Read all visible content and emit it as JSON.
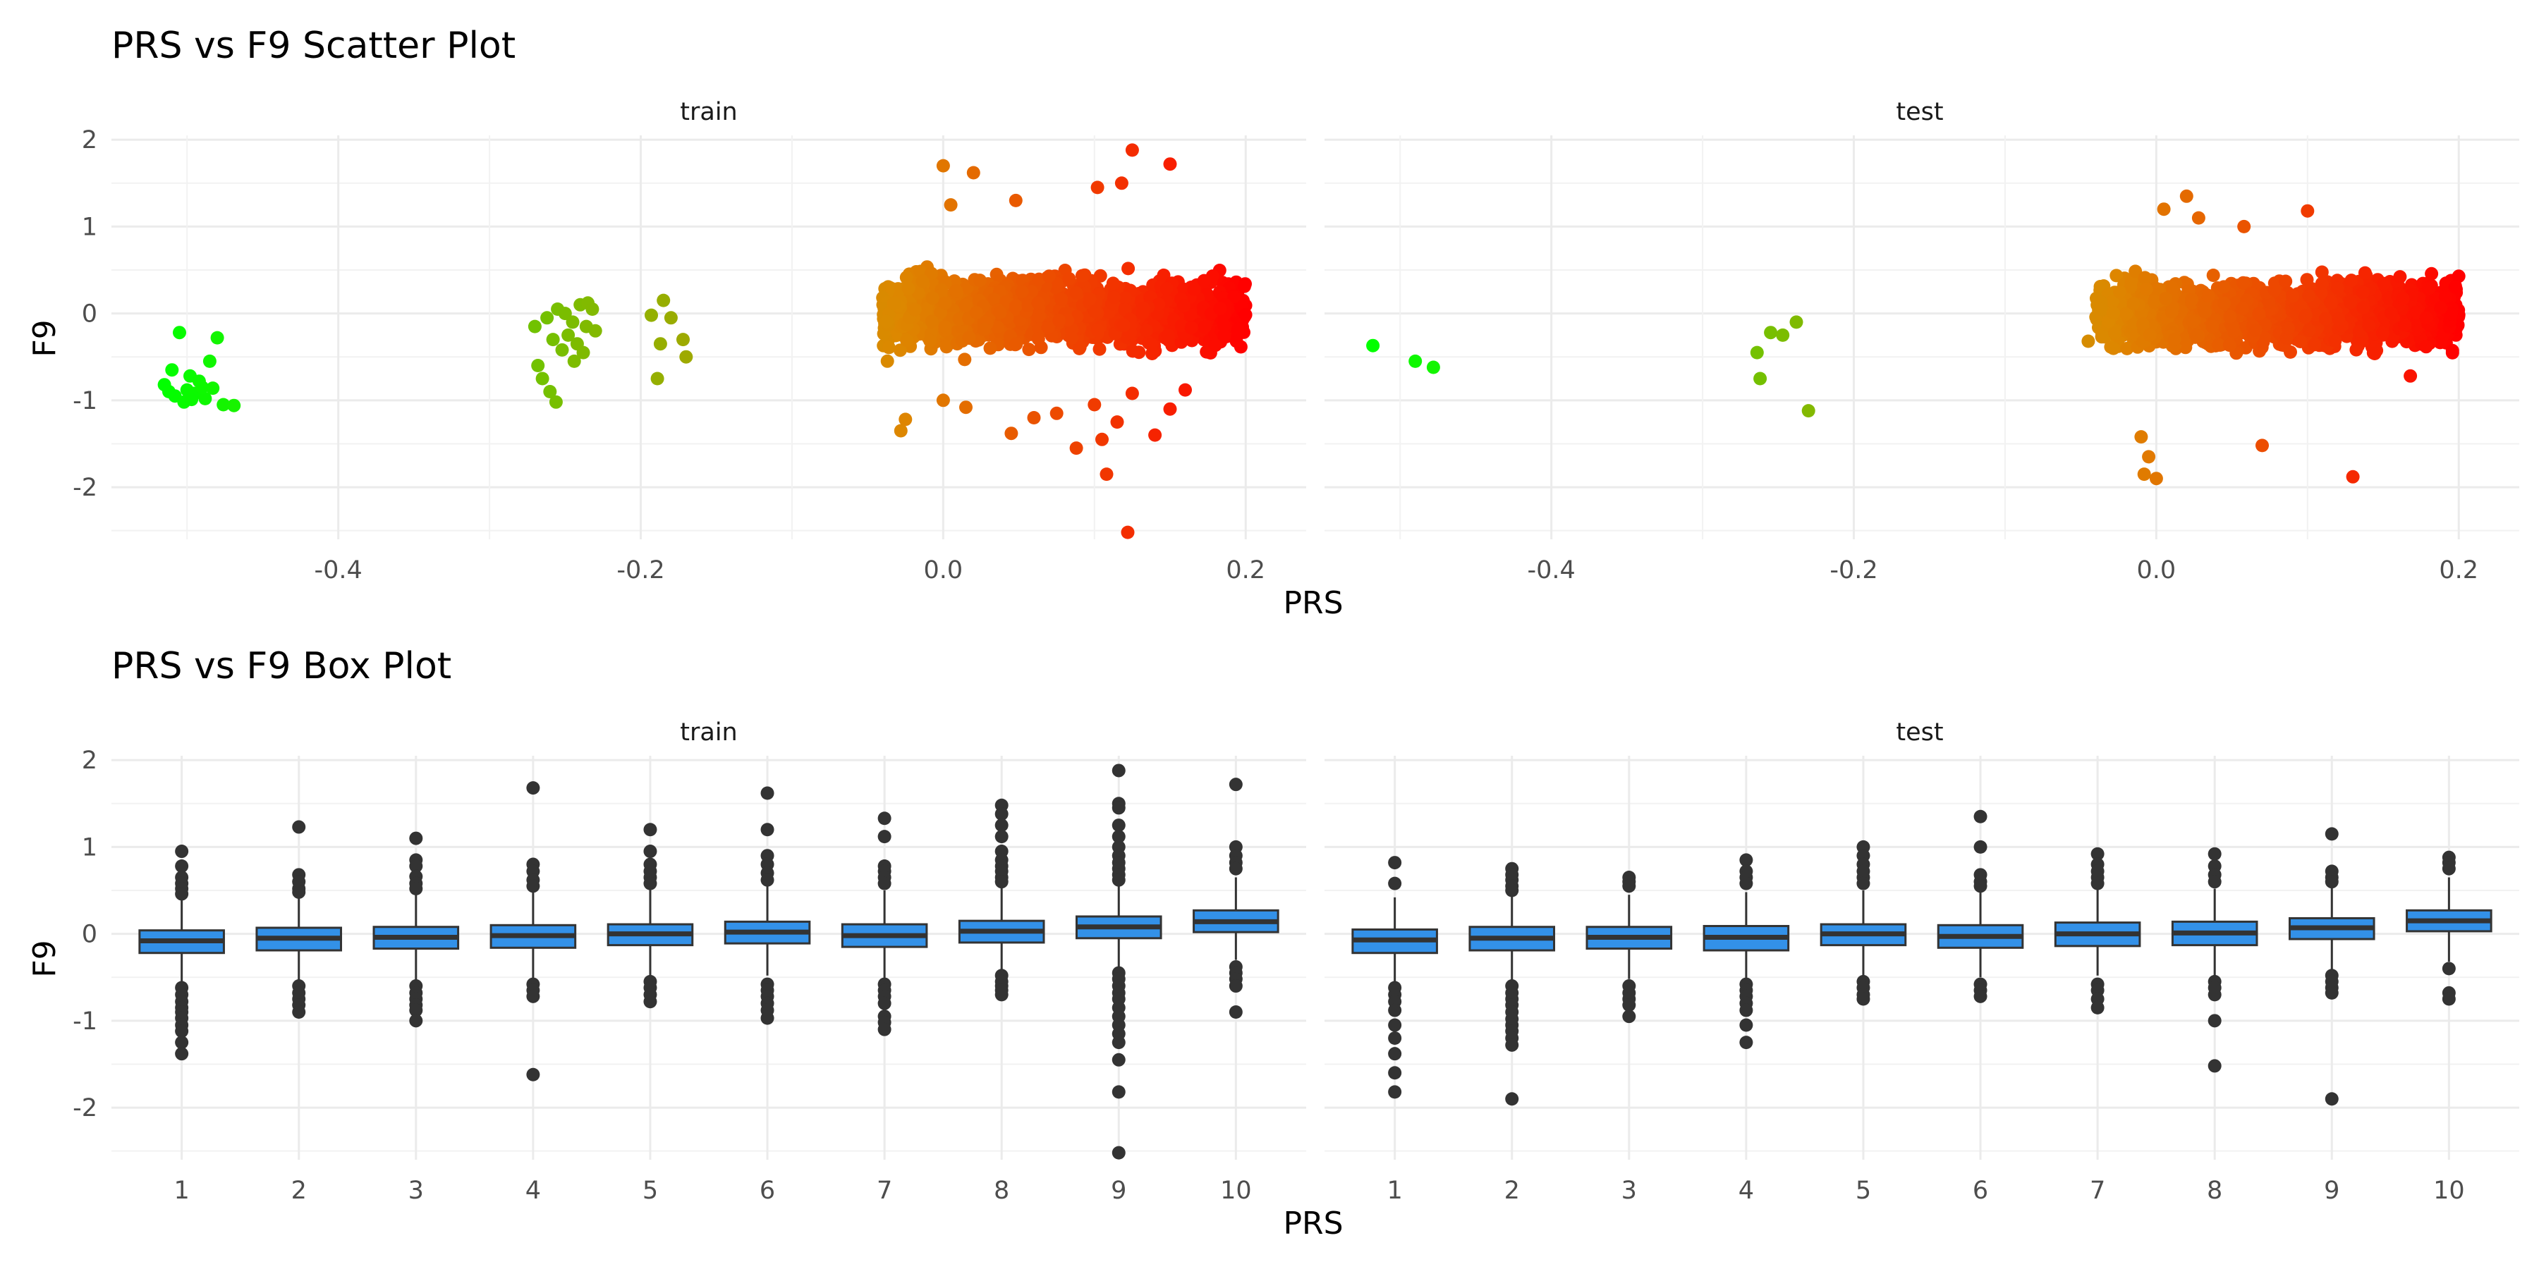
{
  "figure": {
    "scatter": {
      "title": "PRS vs F9 Scatter Plot",
      "xlabel": "PRS",
      "ylabel": "F9",
      "panels": [
        "train",
        "test"
      ]
    },
    "box": {
      "title": "PRS vs F9 Box Plot",
      "xlabel": "PRS",
      "ylabel": "F9",
      "panels": [
        "train",
        "test"
      ]
    }
  },
  "chart_data": [
    {
      "type": "scatter",
      "title": "PRS vs F9 Scatter Plot",
      "xlabel": "PRS",
      "ylabel": "F9",
      "facets": [
        "train",
        "test"
      ],
      "x_ticks": [
        -0.4,
        -0.2,
        0.0,
        0.2
      ],
      "x_tick_labels": [
        "-0.4",
        "-0.2",
        "0.0",
        "0.2"
      ],
      "y_ticks": [
        -2,
        -1,
        0,
        1,
        2
      ],
      "y_tick_labels": [
        "-2",
        "-1",
        "0",
        "1",
        "2"
      ],
      "xlim": [
        -0.55,
        0.24
      ],
      "ylim": [
        -2.6,
        2.05
      ],
      "grid": true,
      "legend": "none",
      "color_scale": {
        "low": "#00ff00",
        "mid": "#dd8800",
        "high": "#ff0000",
        "mapped_to": "PRS"
      },
      "series": [
        {
          "name": "train",
          "main_cluster": {
            "x_range": [
              -0.04,
              0.2
            ],
            "y_center": 0.0,
            "y_spread": 0.55
          },
          "x": [
            -0.505,
            -0.51,
            -0.498,
            -0.492,
            -0.485,
            -0.515,
            -0.5,
            -0.495,
            -0.488,
            -0.48,
            -0.508,
            -0.502,
            -0.49,
            -0.476,
            -0.469,
            -0.512,
            -0.497,
            -0.483,
            -0.27,
            -0.262,
            -0.255,
            -0.25,
            -0.245,
            -0.24,
            -0.235,
            -0.23,
            -0.258,
            -0.248,
            -0.242,
            -0.252,
            -0.238,
            -0.268,
            -0.244,
            -0.26,
            -0.236,
            -0.232,
            -0.265,
            -0.256,
            -0.193,
            -0.185,
            -0.18,
            -0.187,
            -0.172,
            -0.17,
            -0.189,
            0.0,
            0.005,
            0.02,
            0.048,
            0.102,
            0.118,
            0.15,
            0.125,
            0.045,
            0.06,
            0.088,
            0.105,
            0.14,
            0.108,
            0.115,
            0.122,
            -0.028,
            -0.025,
            0.0,
            0.015,
            0.075,
            0.1,
            0.125,
            0.15,
            0.16
          ],
          "y": [
            -0.22,
            -0.65,
            -0.72,
            -0.78,
            -0.55,
            -0.82,
            -0.88,
            -0.92,
            -0.98,
            -0.28,
            -0.95,
            -1.02,
            -0.85,
            -1.05,
            -1.06,
            -0.9,
            -0.99,
            -0.86,
            -0.15,
            -0.05,
            0.05,
            0.0,
            -0.1,
            0.1,
            0.12,
            -0.2,
            -0.3,
            -0.25,
            -0.35,
            -0.42,
            -0.45,
            -0.6,
            -0.55,
            -0.9,
            -0.15,
            0.05,
            -0.75,
            -1.02,
            -0.02,
            0.15,
            -0.05,
            -0.35,
            -0.3,
            -0.5,
            -0.75,
            1.7,
            1.25,
            1.62,
            1.3,
            1.45,
            1.5,
            1.72,
            1.88,
            -1.38,
            -1.2,
            -1.55,
            -1.45,
            -1.4,
            -1.85,
            -1.25,
            -2.52,
            -1.35,
            -1.22,
            -1.0,
            -1.08,
            -1.15,
            -1.05,
            -0.92,
            -1.1,
            -0.88
          ]
        },
        {
          "name": "test",
          "main_cluster": {
            "x_range": [
              -0.04,
              0.2
            ],
            "y_center": 0.0,
            "y_spread": 0.5
          },
          "x": [
            -0.518,
            -0.49,
            -0.478,
            -0.264,
            -0.262,
            -0.255,
            -0.247,
            -0.238,
            -0.23,
            -0.045,
            0.005,
            0.02,
            0.028,
            0.058,
            0.1,
            -0.01,
            -0.008,
            -0.005,
            0.0,
            0.07,
            0.13,
            0.168
          ],
          "y": [
            -0.37,
            -0.55,
            -0.62,
            -0.45,
            -0.75,
            -0.22,
            -0.25,
            -0.1,
            -1.12,
            -0.32,
            1.2,
            1.35,
            1.1,
            1.0,
            1.18,
            -1.42,
            -1.85,
            -1.65,
            -1.9,
            -1.52,
            -1.88,
            -0.72
          ]
        }
      ]
    },
    {
      "type": "box",
      "title": "PRS vs F9 Box Plot",
      "xlabel": "PRS",
      "ylabel": "F9",
      "facets": [
        "train",
        "test"
      ],
      "categories": [
        "1",
        "2",
        "3",
        "4",
        "5",
        "6",
        "7",
        "8",
        "9",
        "10"
      ],
      "y_ticks": [
        -2,
        -1,
        0,
        1,
        2
      ],
      "y_tick_labels": [
        "-2",
        "-1",
        "0",
        "1",
        "2"
      ],
      "ylim": [
        -2.6,
        2.05
      ],
      "grid": true,
      "legend": "none",
      "box_fill": "#3391e8",
      "series": [
        {
          "name": "train",
          "boxes": [
            {
              "q1": -0.22,
              "median": -0.08,
              "q3": 0.04,
              "whisk_lo": -0.58,
              "whisk_hi": 0.42,
              "outliers": [
                0.95,
                0.78,
                0.65,
                0.58,
                0.52,
                0.46,
                -0.62,
                -0.7,
                -0.78,
                -0.85,
                -0.9,
                -0.97,
                -1.05,
                -1.12,
                -1.25,
                -1.38
              ]
            },
            {
              "q1": -0.19,
              "median": -0.05,
              "q3": 0.07,
              "whisk_lo": -0.55,
              "whisk_hi": 0.45,
              "outliers": [
                1.23,
                0.68,
                0.6,
                0.52,
                0.48,
                -0.6,
                -0.68,
                -0.75,
                -0.82,
                -0.9
              ]
            },
            {
              "q1": -0.17,
              "median": -0.04,
              "q3": 0.08,
              "whisk_lo": -0.55,
              "whisk_hi": 0.47,
              "outliers": [
                1.1,
                0.85,
                0.78,
                0.66,
                0.58,
                0.52,
                -0.6,
                -0.68,
                -0.75,
                -0.82,
                -0.88,
                -1.0
              ]
            },
            {
              "q1": -0.16,
              "median": -0.02,
              "q3": 0.1,
              "whisk_lo": -0.53,
              "whisk_hi": 0.5,
              "outliers": [
                1.68,
                0.8,
                0.72,
                0.62,
                0.55,
                -0.58,
                -0.65,
                -0.72,
                -1.62
              ]
            },
            {
              "q1": -0.13,
              "median": 0.0,
              "q3": 0.11,
              "whisk_lo": -0.48,
              "whisk_hi": 0.52,
              "outliers": [
                1.2,
                0.95,
                0.8,
                0.72,
                0.65,
                0.58,
                -0.55,
                -0.62,
                -0.7,
                -0.78
              ]
            },
            {
              "q1": -0.11,
              "median": 0.02,
              "q3": 0.14,
              "whisk_lo": -0.48,
              "whisk_hi": 0.55,
              "outliers": [
                1.62,
                1.2,
                0.9,
                0.8,
                0.7,
                0.62,
                -0.58,
                -0.65,
                -0.72,
                -0.8,
                -0.88,
                -0.97
              ]
            },
            {
              "q1": -0.15,
              "median": -0.02,
              "q3": 0.11,
              "whisk_lo": -0.52,
              "whisk_hi": 0.5,
              "outliers": [
                1.33,
                1.12,
                0.78,
                0.72,
                0.65,
                0.58,
                -0.58,
                -0.65,
                -0.72,
                -0.8,
                -0.95,
                -1.02,
                -1.1
              ]
            },
            {
              "q1": -0.1,
              "median": 0.03,
              "q3": 0.15,
              "whisk_lo": -0.42,
              "whisk_hi": 0.55,
              "outliers": [
                1.48,
                1.38,
                1.25,
                1.12,
                0.95,
                0.85,
                0.78,
                0.72,
                0.65,
                0.6,
                -0.48,
                -0.55,
                -0.6,
                -0.65,
                -0.7
              ]
            },
            {
              "q1": -0.05,
              "median": 0.08,
              "q3": 0.2,
              "whisk_lo": -0.4,
              "whisk_hi": 0.58,
              "outliers": [
                1.88,
                1.5,
                1.45,
                1.25,
                1.12,
                1.0,
                0.9,
                0.82,
                0.75,
                0.68,
                0.62,
                -0.45,
                -0.52,
                -0.6,
                -0.68,
                -0.75,
                -0.85,
                -0.95,
                -1.05,
                -1.15,
                -1.25,
                -1.45,
                -1.82,
                -2.52
              ]
            },
            {
              "q1": 0.02,
              "median": 0.14,
              "q3": 0.27,
              "whisk_lo": -0.3,
              "whisk_hi": 0.65,
              "outliers": [
                1.72,
                1.0,
                0.9,
                0.82,
                0.75,
                -0.38,
                -0.45,
                -0.52,
                -0.6,
                -0.9
              ]
            }
          ]
        },
        {
          "name": "test",
          "boxes": [
            {
              "q1": -0.22,
              "median": -0.07,
              "q3": 0.05,
              "whisk_lo": -0.55,
              "whisk_hi": 0.42,
              "outliers": [
                0.82,
                0.58,
                -0.62,
                -0.7,
                -0.78,
                -0.88,
                -1.05,
                -1.2,
                -1.38,
                -1.6,
                -1.82
              ]
            },
            {
              "q1": -0.19,
              "median": -0.05,
              "q3": 0.08,
              "whisk_lo": -0.55,
              "whisk_hi": 0.45,
              "outliers": [
                0.75,
                0.68,
                0.62,
                0.55,
                0.5,
                -0.6,
                -0.68,
                -0.75,
                -0.82,
                -0.9,
                -0.98,
                -1.05,
                -1.12,
                -1.2,
                -1.28,
                -1.9
              ]
            },
            {
              "q1": -0.17,
              "median": -0.04,
              "q3": 0.08,
              "whisk_lo": -0.52,
              "whisk_hi": 0.45,
              "outliers": [
                0.65,
                0.6,
                0.55,
                -0.6,
                -0.68,
                -0.75,
                -0.82,
                -0.95
              ]
            },
            {
              "q1": -0.19,
              "median": -0.04,
              "q3": 0.09,
              "whisk_lo": -0.52,
              "whisk_hi": 0.48,
              "outliers": [
                0.85,
                0.72,
                0.65,
                0.58,
                -0.58,
                -0.65,
                -0.72,
                -0.8,
                -0.88,
                -1.05,
                -1.25
              ]
            },
            {
              "q1": -0.13,
              "median": 0.0,
              "q3": 0.11,
              "whisk_lo": -0.48,
              "whisk_hi": 0.5,
              "outliers": [
                1.0,
                0.9,
                0.8,
                0.72,
                0.65,
                0.58,
                -0.55,
                -0.62,
                -0.7,
                -0.75
              ]
            },
            {
              "q1": -0.16,
              "median": -0.03,
              "q3": 0.1,
              "whisk_lo": -0.5,
              "whisk_hi": 0.5,
              "outliers": [
                1.35,
                1.0,
                0.68,
                0.6,
                0.55,
                -0.58,
                -0.65,
                -0.72
              ]
            },
            {
              "q1": -0.14,
              "median": 0.0,
              "q3": 0.13,
              "whisk_lo": -0.48,
              "whisk_hi": 0.52,
              "outliers": [
                0.92,
                0.8,
                0.72,
                0.65,
                0.58,
                -0.58,
                -0.65,
                -0.75,
                -0.85
              ]
            },
            {
              "q1": -0.13,
              "median": 0.01,
              "q3": 0.14,
              "whisk_lo": -0.48,
              "whisk_hi": 0.52,
              "outliers": [
                0.92,
                0.78,
                0.68,
                0.6,
                -0.55,
                -0.62,
                -0.7,
                -1.0,
                -1.52
              ]
            },
            {
              "q1": -0.06,
              "median": 0.07,
              "q3": 0.18,
              "whisk_lo": -0.42,
              "whisk_hi": 0.55,
              "outliers": [
                1.15,
                0.72,
                0.65,
                0.6,
                -0.48,
                -0.55,
                -0.62,
                -0.68,
                -1.9
              ]
            },
            {
              "q1": 0.03,
              "median": 0.15,
              "q3": 0.27,
              "whisk_lo": -0.32,
              "whisk_hi": 0.65,
              "outliers": [
                0.88,
                0.82,
                0.75,
                -0.4,
                -0.68,
                -0.75
              ]
            }
          ]
        }
      ]
    }
  ]
}
